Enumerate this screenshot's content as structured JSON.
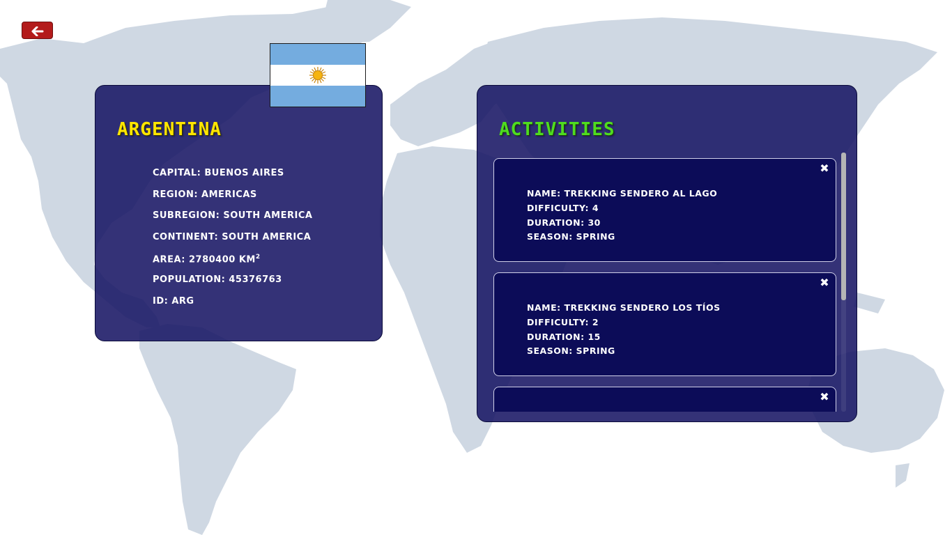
{
  "back_button": {
    "icon": "arrow-left-icon",
    "glyph": "➔"
  },
  "country": {
    "title": "ARGENTINA",
    "flag": {
      "name": "argentina-flag",
      "colors": {
        "blue": "#74acdf",
        "white": "#ffffff",
        "sun": "#f6b40e"
      }
    },
    "info": {
      "capital": "CAPITAL: BUENOS AIRES",
      "region": "REGION: AMERICAS",
      "subregion": "SUBREGION: SOUTH AMERICA",
      "continent": "CONTINENT: SOUTH AMERICA",
      "area": "AREA: 2780400 KM",
      "area_sup": "2",
      "population": "POPULATION: 45376763",
      "id": "ID: ARG"
    }
  },
  "activities": {
    "title": "ACTIVITIES",
    "close_glyph": "✖",
    "items": [
      {
        "name": "NAME: TREKKING SENDERO AL LAGO",
        "difficulty": "DIFFICULTY: 4",
        "duration": "DURATION: 30",
        "season": "SEASON: SPRING"
      },
      {
        "name": "NAME: TREKKING SENDERO LOS TÍOS",
        "difficulty": "DIFFICULTY: 2",
        "duration": "DURATION: 15",
        "season": "SEASON: SPRING"
      },
      {
        "name": "",
        "difficulty": "",
        "duration": "",
        "season": ""
      }
    ]
  },
  "colors": {
    "panel_bg": "#181664",
    "card_bg": "#0c0c58",
    "country_title": "#ffe600",
    "activities_title": "#4fdc1f",
    "back_button": "#b31b1b",
    "map_land": "#cfd8e3"
  }
}
